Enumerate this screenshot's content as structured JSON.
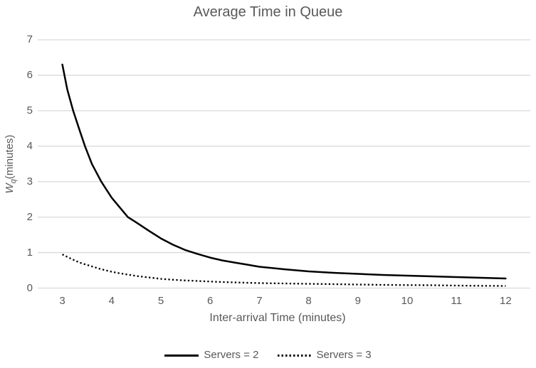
{
  "colors": {
    "background": "#ffffff",
    "text": "#595959",
    "gridline": "#d9d9d9",
    "series": "#000000"
  },
  "chart_data": {
    "type": "line",
    "title": "Average Time in Queue",
    "xlabel": "Inter-arrival Time (minutes)",
    "ylabel": "Wq (minutes)",
    "ylabel_parts": {
      "symbol": "W",
      "subscript": "q",
      "rest": "(minutes)"
    },
    "xlim": [
      2.5,
      12.5
    ],
    "ylim": [
      0,
      7
    ],
    "x_ticks": [
      3,
      4,
      5,
      6,
      7,
      8,
      9,
      10,
      11,
      12
    ],
    "y_ticks": [
      0,
      1,
      2,
      3,
      4,
      5,
      6,
      7
    ],
    "grid": "horizontal-only",
    "legend_position": "bottom",
    "series": [
      {
        "name": "Servers = 2",
        "style": "solid",
        "color": "#000000",
        "x": [
          3.0,
          3.1,
          3.22,
          3.35,
          3.46,
          3.6,
          3.79,
          4.0,
          4.15,
          4.33,
          4.5,
          4.75,
          5.0,
          5.25,
          5.5,
          5.75,
          6.0,
          6.25,
          6.5,
          6.75,
          7.0,
          7.5,
          8.0,
          8.5,
          9.0,
          9.5,
          10.0,
          10.5,
          11.0,
          11.5,
          12.0
        ],
        "y": [
          6.3,
          5.6,
          5.0,
          4.45,
          4.0,
          3.5,
          3.0,
          2.55,
          2.3,
          2.0,
          1.85,
          1.62,
          1.4,
          1.22,
          1.07,
          0.96,
          0.86,
          0.78,
          0.72,
          0.66,
          0.6,
          0.53,
          0.47,
          0.43,
          0.4,
          0.37,
          0.35,
          0.33,
          0.31,
          0.29,
          0.27
        ]
      },
      {
        "name": "Servers = 3",
        "style": "dotted",
        "color": "#000000",
        "x": [
          3.0,
          3.1,
          3.22,
          3.35,
          3.46,
          3.6,
          3.79,
          4.0,
          4.15,
          4.33,
          4.5,
          4.75,
          5.0,
          5.25,
          5.5,
          5.75,
          6.0,
          6.25,
          6.5,
          6.75,
          7.0,
          7.5,
          8.0,
          8.5,
          9.0,
          9.5,
          10.0,
          10.5,
          11.0,
          11.5,
          12.0
        ],
        "y": [
          0.95,
          0.88,
          0.8,
          0.72,
          0.67,
          0.61,
          0.53,
          0.46,
          0.42,
          0.38,
          0.34,
          0.3,
          0.26,
          0.235,
          0.215,
          0.2,
          0.185,
          0.17,
          0.16,
          0.15,
          0.14,
          0.13,
          0.12,
          0.11,
          0.1,
          0.09,
          0.085,
          0.08,
          0.07,
          0.065,
          0.06
        ]
      }
    ]
  }
}
